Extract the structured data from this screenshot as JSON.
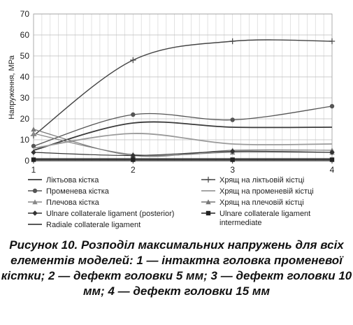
{
  "chart_data": {
    "type": "line",
    "x": [
      1,
      2,
      3,
      4
    ],
    "xticks": [
      "1",
      "2",
      "3",
      "4"
    ],
    "ylabel": "Напруження, МРа",
    "ylim": [
      0,
      70
    ],
    "yticks": [
      "0",
      "10",
      "20",
      "30",
      "40",
      "50",
      "60",
      "70"
    ],
    "grid": true,
    "series": [
      {
        "name": "Ліктьова кістка",
        "values": [
          5,
          18,
          16,
          16
        ],
        "color": "#3a3a3a",
        "marker": "none",
        "width": 1.8
      },
      {
        "name": "Хрящ на ліктьовій кістці",
        "values": [
          12,
          48,
          57,
          57
        ],
        "color": "#444444",
        "marker": "plus",
        "width": 1.4
      },
      {
        "name": "Променева кістка",
        "values": [
          7,
          22,
          19.5,
          26
        ],
        "color": "#555555",
        "marker": "circle",
        "width": 1.3
      },
      {
        "name": "Хрящ на променевій кістці",
        "values": [
          6,
          13,
          8,
          8
        ],
        "color": "#9a9a9a",
        "marker": "none",
        "width": 1.8
      },
      {
        "name": "Плечова кістка",
        "values": [
          13,
          3,
          4,
          4
        ],
        "color": "#888888",
        "marker": "triangle",
        "width": 1.2
      },
      {
        "name": "Хрящ на плечовій кістці",
        "values": [
          15,
          2.5,
          5,
          5
        ],
        "color": "#777777",
        "marker": "triangle",
        "width": 1.2
      },
      {
        "name": "Ulnare collaterale ligament (posterior)",
        "values": [
          4,
          2.5,
          4.5,
          4
        ],
        "color": "#333333",
        "marker": "diamond",
        "width": 1.2
      },
      {
        "name": "Ulnare collaterale ligament intermediate",
        "values": [
          0.5,
          0.5,
          0.5,
          0.5
        ],
        "color": "#222222",
        "marker": "square",
        "width": 1.2
      },
      {
        "name": "Radiale collaterale ligament",
        "values": [
          1,
          1,
          1,
          1
        ],
        "color": "#222222",
        "marker": "none",
        "width": 1.2
      }
    ]
  },
  "legend": [
    {
      "label": "Ліктьова кістка",
      "series": 0
    },
    {
      "label": "Хрящ на ліктьовій кістці",
      "series": 1
    },
    {
      "label": "Променева кістка",
      "series": 2
    },
    {
      "label": "Хрящ на променевій кістці",
      "series": 3
    },
    {
      "label": "Плечова кістка",
      "series": 4
    },
    {
      "label": "Хрящ на плечовій кістці",
      "series": 5
    },
    {
      "label": "Ulnare collaterale ligament (posterior)",
      "series": 6
    },
    {
      "label": "Ulnare collaterale ligament",
      "label2": "intermediate",
      "series": 7
    },
    {
      "label": "Radiale collaterale ligament",
      "series": 8
    }
  ],
  "caption": "Рисунок 10. Розподіл максимальних напружень для всіх елементів моделей: 1 — інтактна головка променевої кістки; 2 — дефект головки 5 мм; 3 — дефект головки 10 мм; 4 — дефект головки 15 мм"
}
